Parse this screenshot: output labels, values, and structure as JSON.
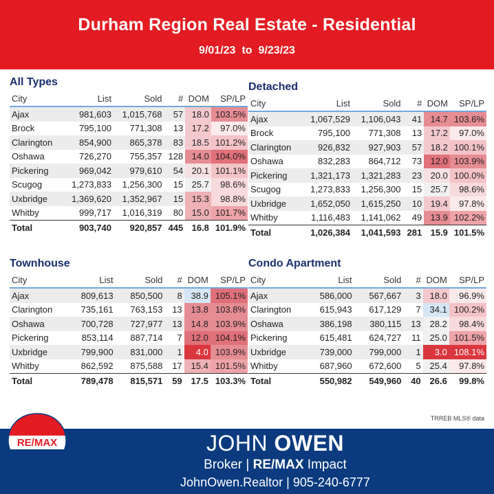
{
  "header": {
    "title": "Durham Region Real Estate - Residential",
    "date_from": "9/01/23",
    "date_to_word": "to",
    "date_to": "9/23/23"
  },
  "columns": {
    "city": "City",
    "list": "List",
    "sold": "Sold",
    "num": "#",
    "dom": "DOM",
    "splp": "SP/LP"
  },
  "colors": {
    "header_red": "#e31b23",
    "title_blue": "#1a2e6e",
    "footer_blue": "#0b3a7e"
  },
  "panels": [
    {
      "id": "all",
      "title": "All Types",
      "rows": [
        {
          "city": "Ajax",
          "list": "981,603",
          "sold": "1,015,768",
          "num": "57",
          "dom": "18.0",
          "splp": "103.5%",
          "domv": 18.0,
          "splpv": 103.5
        },
        {
          "city": "Brock",
          "list": "795,100",
          "sold": "771,308",
          "num": "13",
          "dom": "17.2",
          "splp": "97.0%",
          "domv": 17.2,
          "splpv": 97.0
        },
        {
          "city": "Clarington",
          "list": "854,900",
          "sold": "865,378",
          "num": "83",
          "dom": "18.5",
          "splp": "101.2%",
          "domv": 18.5,
          "splpv": 101.2
        },
        {
          "city": "Oshawa",
          "list": "726,270",
          "sold": "755,357",
          "num": "128",
          "dom": "14.0",
          "splp": "104.0%",
          "domv": 14.0,
          "splpv": 104.0
        },
        {
          "city": "Pickering",
          "list": "969,042",
          "sold": "979,610",
          "num": "54",
          "dom": "20.1",
          "splp": "101.1%",
          "domv": 20.1,
          "splpv": 101.1
        },
        {
          "city": "Scugog",
          "list": "1,273,833",
          "sold": "1,256,300",
          "num": "15",
          "dom": "25.7",
          "splp": "98.6%",
          "domv": 25.7,
          "splpv": 98.6
        },
        {
          "city": "Uxbridge",
          "list": "1,369,620",
          "sold": "1,352,967",
          "num": "15",
          "dom": "15.3",
          "splp": "98.8%",
          "domv": 15.3,
          "splpv": 98.8
        },
        {
          "city": "Whitby",
          "list": "999,717",
          "sold": "1,016,319",
          "num": "80",
          "dom": "15.0",
          "splp": "101.7%",
          "domv": 15.0,
          "splpv": 101.7
        }
      ],
      "total": {
        "city": "Total",
        "list": "903,740",
        "sold": "920,857",
        "num": "445",
        "dom": "16.8",
        "splp": "101.9%"
      }
    },
    {
      "id": "detached",
      "title": "Detached",
      "rows": [
        {
          "city": "Ajax",
          "list": "1,067,529",
          "sold": "1,106,043",
          "num": "41",
          "dom": "14.7",
          "splp": "103.6%",
          "domv": 14.7,
          "splpv": 103.6
        },
        {
          "city": "Brock",
          "list": "795,100",
          "sold": "771,308",
          "num": "13",
          "dom": "17.2",
          "splp": "97.0%",
          "domv": 17.2,
          "splpv": 97.0
        },
        {
          "city": "Clarington",
          "list": "926,832",
          "sold": "927,903",
          "num": "57",
          "dom": "18.2",
          "splp": "100.1%",
          "domv": 18.2,
          "splpv": 100.1
        },
        {
          "city": "Oshawa",
          "list": "832,283",
          "sold": "864,712",
          "num": "73",
          "dom": "12.0",
          "splp": "103.9%",
          "domv": 12.0,
          "splpv": 103.9
        },
        {
          "city": "Pickering",
          "list": "1,321,173",
          "sold": "1,321,283",
          "num": "23",
          "dom": "20.0",
          "splp": "100.0%",
          "domv": 20.0,
          "splpv": 100.0
        },
        {
          "city": "Scugog",
          "list": "1,273,833",
          "sold": "1,256,300",
          "num": "15",
          "dom": "25.7",
          "splp": "98.6%",
          "domv": 25.7,
          "splpv": 98.6
        },
        {
          "city": "Uxbridge",
          "list": "1,652,050",
          "sold": "1,615,250",
          "num": "10",
          "dom": "19.4",
          "splp": "97.8%",
          "domv": 19.4,
          "splpv": 97.8
        },
        {
          "city": "Whitby",
          "list": "1,116,483",
          "sold": "1,141,062",
          "num": "49",
          "dom": "13.9",
          "splp": "102.2%",
          "domv": 13.9,
          "splpv": 102.2
        }
      ],
      "total": {
        "city": "Total",
        "list": "1,026,384",
        "sold": "1,041,593",
        "num": "281",
        "dom": "15.9",
        "splp": "101.5%"
      }
    },
    {
      "id": "townhouse",
      "title": "Townhouse",
      "rows": [
        {
          "city": "Ajax",
          "list": "809,613",
          "sold": "850,500",
          "num": "8",
          "dom": "38.9",
          "splp": "105.1%",
          "domv": 38.9,
          "splpv": 105.1
        },
        {
          "city": "Clarington",
          "list": "735,161",
          "sold": "763,153",
          "num": "13",
          "dom": "13.8",
          "splp": "103.8%",
          "domv": 13.8,
          "splpv": 103.8
        },
        {
          "city": "Oshawa",
          "list": "700,728",
          "sold": "727,977",
          "num": "13",
          "dom": "14.8",
          "splp": "103.9%",
          "domv": 14.8,
          "splpv": 103.9
        },
        {
          "city": "Pickering",
          "list": "853,114",
          "sold": "887,714",
          "num": "7",
          "dom": "12.0",
          "splp": "104.1%",
          "domv": 12.0,
          "splpv": 104.1
        },
        {
          "city": "Uxbridge",
          "list": "799,900",
          "sold": "831,000",
          "num": "1",
          "dom": "4.0",
          "splp": "103.9%",
          "domv": 4.0,
          "splpv": 103.9
        },
        {
          "city": "Whitby",
          "list": "862,592",
          "sold": "875,588",
          "num": "17",
          "dom": "15.4",
          "splp": "101.5%",
          "domv": 15.4,
          "splpv": 101.5
        }
      ],
      "total": {
        "city": "Total",
        "list": "789,478",
        "sold": "815,571",
        "num": "59",
        "dom": "17.5",
        "splp": "103.3%"
      }
    },
    {
      "id": "condo",
      "title": "Condo Apartment",
      "rows": [
        {
          "city": "Ajax",
          "list": "586,000",
          "sold": "567,667",
          "num": "3",
          "dom": "18.0",
          "splp": "96.9%",
          "domv": 18.0,
          "splpv": 96.9
        },
        {
          "city": "Clarington",
          "list": "615,943",
          "sold": "617,129",
          "num": "7",
          "dom": "34.1",
          "splp": "100.2%",
          "domv": 34.1,
          "splpv": 100.2
        },
        {
          "city": "Oshawa",
          "list": "386,198",
          "sold": "380,115",
          "num": "13",
          "dom": "28.2",
          "splp": "98.4%",
          "domv": 28.2,
          "splpv": 98.4
        },
        {
          "city": "Pickering",
          "list": "615,481",
          "sold": "624,727",
          "num": "11",
          "dom": "25.0",
          "splp": "101.5%",
          "domv": 25.0,
          "splpv": 101.5
        },
        {
          "city": "Uxbridge",
          "list": "739,000",
          "sold": "799,000",
          "num": "1",
          "dom": "3.0",
          "splp": "108.1%",
          "domv": 3.0,
          "splpv": 108.1
        },
        {
          "city": "Whitby",
          "list": "687,960",
          "sold": "672,600",
          "num": "5",
          "dom": "25.4",
          "splp": "97.8%",
          "domv": 25.4,
          "splpv": 97.8
        }
      ],
      "total": {
        "city": "Total",
        "list": "550,982",
        "sold": "549,960",
        "num": "40",
        "dom": "26.6",
        "splp": "99.8%"
      }
    }
  ],
  "source": "TRREB MLS® data",
  "footer": {
    "name_first": "JOHN ",
    "name_last": "OWEN",
    "role": "Broker",
    "company_brand": "RE/MAX",
    "company_suffix": " Impact",
    "website": "JohnOwen.Realtor",
    "phone": "905-240-6777"
  },
  "logo_text": "RE/MAX"
}
